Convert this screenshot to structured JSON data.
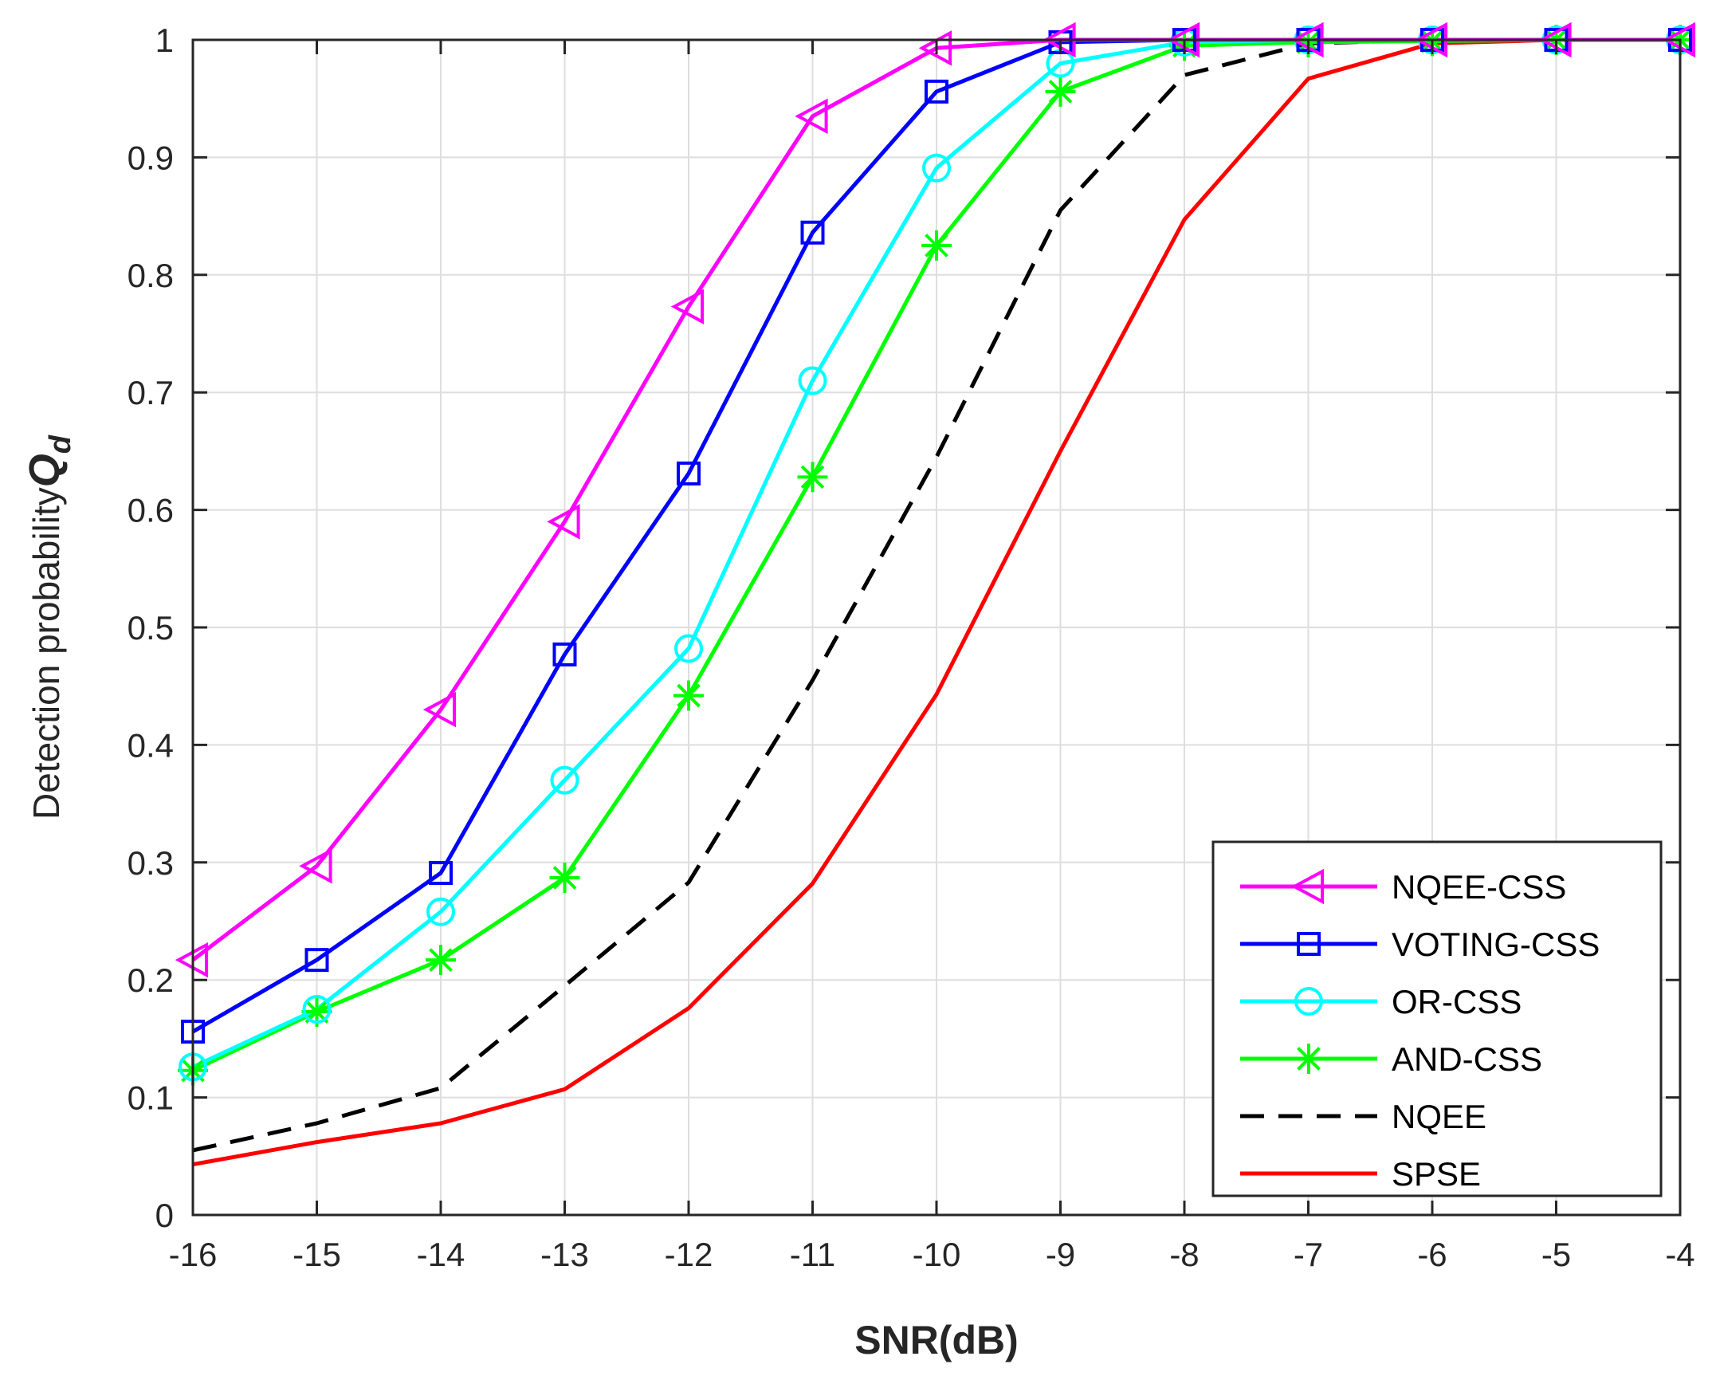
{
  "chart_data": {
    "type": "line",
    "title": "",
    "xlabel": "SNR(dB)",
    "ylabel": "Detection probability",
    "ylabel_symbol": "Q",
    "ylabel_subscript": "d",
    "xlim": [
      -16,
      -4
    ],
    "ylim": [
      0,
      1
    ],
    "xticks": [
      -16,
      -15,
      -14,
      -13,
      -12,
      -11,
      -10,
      -9,
      -8,
      -7,
      -6,
      -5,
      -4
    ],
    "yticks": [
      0,
      0.1,
      0.2,
      0.3,
      0.4,
      0.5,
      0.6,
      0.7,
      0.8,
      0.9,
      1
    ],
    "grid": true,
    "legend_position": "bottom-right",
    "x": [
      -16,
      -15,
      -14,
      -13,
      -12,
      -11,
      -10,
      -9,
      -8,
      -7,
      -6,
      -5,
      -4
    ],
    "series": [
      {
        "name": "NQEE-CSS",
        "color": "#ff00ff",
        "marker": "triangle-left",
        "dash": "solid",
        "values": [
          0.217,
          0.297,
          0.43,
          0.59,
          0.773,
          0.935,
          0.993,
          1.0,
          1.0,
          1.0,
          1.0,
          1.0,
          1.0
        ]
      },
      {
        "name": "VOTING-CSS",
        "color": "#0000ff",
        "marker": "square",
        "dash": "solid",
        "values": [
          0.156,
          0.217,
          0.291,
          0.477,
          0.631,
          0.836,
          0.956,
          0.998,
          1.0,
          1.0,
          1.0,
          1.0,
          1.0
        ]
      },
      {
        "name": "OR-CSS",
        "color": "#00ffff",
        "marker": "circle",
        "dash": "solid",
        "values": [
          0.126,
          0.175,
          0.258,
          0.37,
          0.482,
          0.71,
          0.891,
          0.98,
          0.998,
          1.0,
          1.0,
          1.0,
          1.0
        ]
      },
      {
        "name": "AND-CSS",
        "color": "#00ff00",
        "marker": "asterisk",
        "dash": "solid",
        "values": [
          0.123,
          0.173,
          0.217,
          0.287,
          0.442,
          0.628,
          0.825,
          0.956,
          0.995,
          0.998,
          0.999,
          1.0,
          1.0
        ]
      },
      {
        "name": "NQEE",
        "color": "#000000",
        "marker": "none",
        "dash": "dashed",
        "values": [
          0.055,
          0.078,
          0.108,
          0.195,
          0.283,
          0.455,
          0.645,
          0.855,
          0.97,
          0.997,
          1.0,
          1.0,
          1.0
        ]
      },
      {
        "name": "SPSE",
        "color": "#ff0000",
        "marker": "none",
        "dash": "solid",
        "values": [
          0.043,
          0.062,
          0.078,
          0.107,
          0.176,
          0.282,
          0.443,
          0.65,
          0.847,
          0.967,
          0.997,
          1.0,
          1.0
        ]
      }
    ]
  }
}
